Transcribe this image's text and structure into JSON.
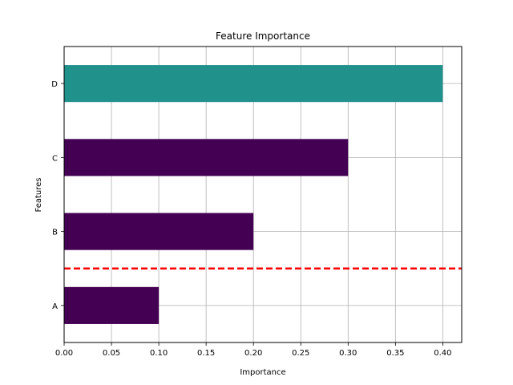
{
  "chart_data": {
    "type": "bar",
    "orientation": "horizontal",
    "title": "Feature Importance",
    "xlabel": "Importance",
    "ylabel": "Features",
    "categories": [
      "A",
      "B",
      "C",
      "D"
    ],
    "values": [
      0.1,
      0.2,
      0.3,
      0.4
    ],
    "bar_colors": [
      "#440154",
      "#440154",
      "#440154",
      "#21918c"
    ],
    "xlim": [
      0,
      0.42
    ],
    "xticks": [
      0.0,
      0.05,
      0.1,
      0.15,
      0.2,
      0.25,
      0.3,
      0.35,
      0.4
    ],
    "xtick_labels": [
      "0.00",
      "0.05",
      "0.10",
      "0.15",
      "0.20",
      "0.25",
      "0.30",
      "0.35",
      "0.40"
    ],
    "threshold_line": {
      "y_between": [
        "A",
        "B"
      ],
      "color": "#ff0000",
      "style": "dashed"
    },
    "grid": true
  }
}
